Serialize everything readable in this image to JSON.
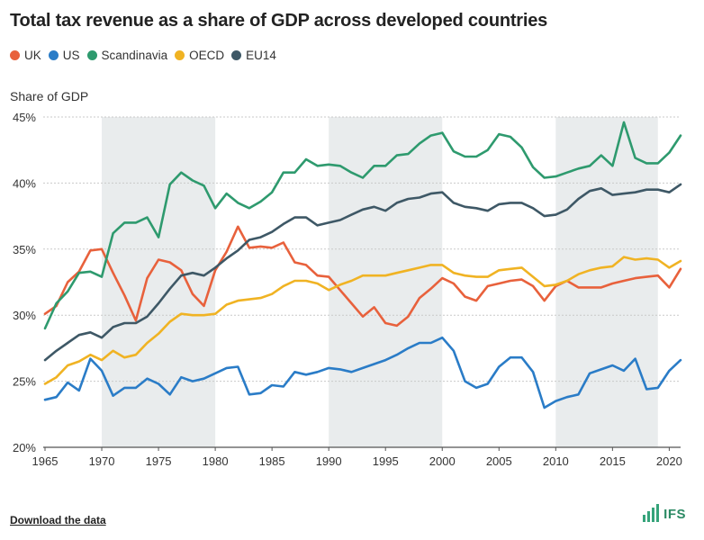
{
  "chart_data": {
    "type": "line",
    "title": "Total tax revenue as a share of GDP across developed countries",
    "ylabel": "Share of GDP",
    "xlabel": "",
    "ylim": [
      20,
      45
    ],
    "xlim": [
      1965,
      2021
    ],
    "yticks": [
      "20%",
      "25%",
      "30%",
      "35%",
      "40%",
      "45%"
    ],
    "ytick_values": [
      20,
      25,
      30,
      35,
      40,
      45
    ],
    "xticks": [
      1965,
      1970,
      1975,
      1980,
      1985,
      1990,
      1995,
      2000,
      2005,
      2010,
      2015,
      2020
    ],
    "shaded_periods": [
      [
        1970,
        1980
      ],
      [
        1990,
        2000
      ],
      [
        2010,
        2019
      ]
    ],
    "x": [
      1965,
      1966,
      1967,
      1968,
      1969,
      1970,
      1971,
      1972,
      1973,
      1974,
      1975,
      1976,
      1977,
      1978,
      1979,
      1980,
      1981,
      1982,
      1983,
      1984,
      1985,
      1986,
      1987,
      1988,
      1989,
      1990,
      1991,
      1992,
      1993,
      1994,
      1995,
      1996,
      1997,
      1998,
      1999,
      2000,
      2001,
      2002,
      2003,
      2004,
      2005,
      2006,
      2007,
      2008,
      2009,
      2010,
      2011,
      2012,
      2013,
      2014,
      2015,
      2016,
      2017,
      2018,
      2019,
      2020,
      2021
    ],
    "series": [
      {
        "name": "UK",
        "color": "#e8613c",
        "values": [
          30.1,
          30.7,
          32.5,
          33.3,
          34.9,
          35.0,
          33.2,
          31.5,
          29.6,
          32.8,
          34.2,
          34.0,
          33.4,
          31.6,
          30.7,
          33.4,
          34.8,
          36.7,
          35.1,
          35.2,
          35.1,
          35.5,
          34.0,
          33.8,
          33.0,
          32.9,
          31.9,
          30.9,
          29.9,
          30.6,
          29.4,
          29.2,
          29.9,
          31.3,
          32.0,
          32.8,
          32.4,
          31.4,
          31.1,
          32.2,
          32.4,
          32.6,
          32.7,
          32.2,
          31.1,
          32.2,
          32.6,
          32.1,
          32.1,
          32.1,
          32.4,
          32.6,
          32.8,
          32.9,
          33.0,
          32.1,
          33.5
        ]
      },
      {
        "name": "US",
        "color": "#2a7cc7",
        "values": [
          23.6,
          23.8,
          24.9,
          24.3,
          26.7,
          25.8,
          23.9,
          24.5,
          24.5,
          25.2,
          24.8,
          24.0,
          25.3,
          25.0,
          25.2,
          25.6,
          26.0,
          26.1,
          24.0,
          24.1,
          24.7,
          24.6,
          25.7,
          25.5,
          25.7,
          26.0,
          25.9,
          25.7,
          26.0,
          26.3,
          26.6,
          27.0,
          27.5,
          27.9,
          27.9,
          28.3,
          27.3,
          25.0,
          24.5,
          24.8,
          26.1,
          26.8,
          26.8,
          25.7,
          23.0,
          23.5,
          23.8,
          24.0,
          25.6,
          25.9,
          26.2,
          25.8,
          26.7,
          24.4,
          24.5,
          25.8,
          26.6
        ]
      },
      {
        "name": "Scandinavia",
        "color": "#2e9a6e",
        "values": [
          29.0,
          30.9,
          31.8,
          33.2,
          33.3,
          32.9,
          36.2,
          37.0,
          37.0,
          37.4,
          35.9,
          39.9,
          40.8,
          40.2,
          39.8,
          38.1,
          39.2,
          38.5,
          38.1,
          38.6,
          39.3,
          40.8,
          40.8,
          41.8,
          41.3,
          41.4,
          41.3,
          40.8,
          40.4,
          41.3,
          41.3,
          42.1,
          42.2,
          43.0,
          43.6,
          43.8,
          42.4,
          42.0,
          42.0,
          42.5,
          43.7,
          43.5,
          42.7,
          41.2,
          40.4,
          40.5,
          40.8,
          41.1,
          41.3,
          42.1,
          41.3,
          44.6,
          41.9,
          41.5,
          41.5,
          42.3,
          43.6
        ]
      },
      {
        "name": "OECD",
        "color": "#f0b323",
        "values": [
          24.8,
          25.3,
          26.2,
          26.5,
          27.0,
          26.6,
          27.3,
          26.8,
          27.0,
          27.9,
          28.6,
          29.5,
          30.1,
          30.0,
          30.0,
          30.1,
          30.8,
          31.1,
          31.2,
          31.3,
          31.6,
          32.2,
          32.6,
          32.6,
          32.4,
          31.9,
          32.3,
          32.6,
          33.0,
          33.0,
          33.0,
          33.2,
          33.4,
          33.6,
          33.8,
          33.8,
          33.2,
          33.0,
          32.9,
          32.9,
          33.4,
          33.5,
          33.6,
          32.9,
          32.2,
          32.3,
          32.6,
          33.1,
          33.4,
          33.6,
          33.7,
          34.4,
          34.2,
          34.3,
          34.2,
          33.6,
          34.1
        ]
      },
      {
        "name": "EU14",
        "color": "#3e5866",
        "values": [
          26.6,
          27.3,
          27.9,
          28.5,
          28.7,
          28.3,
          29.1,
          29.4,
          29.4,
          29.9,
          30.9,
          32.0,
          33.0,
          33.2,
          33.0,
          33.6,
          34.3,
          34.9,
          35.7,
          35.9,
          36.3,
          36.9,
          37.4,
          37.4,
          36.8,
          37.0,
          37.2,
          37.6,
          38.0,
          38.2,
          37.9,
          38.5,
          38.8,
          38.9,
          39.2,
          39.3,
          38.5,
          38.2,
          38.1,
          37.9,
          38.4,
          38.5,
          38.5,
          38.1,
          37.5,
          37.6,
          38.0,
          38.8,
          39.4,
          39.6,
          39.1,
          39.2,
          39.3,
          39.5,
          39.5,
          39.3,
          39.9
        ]
      }
    ]
  },
  "footer": {
    "download_label": "Download the data",
    "logo_text": "IFS"
  }
}
